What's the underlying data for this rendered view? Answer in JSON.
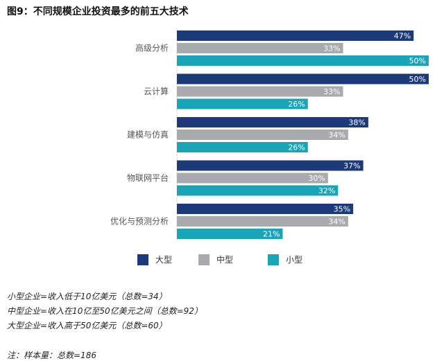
{
  "chart_data": {
    "type": "bar",
    "orientation": "horizontal",
    "title": "图9：不同规模企业投资最多的前五大技术",
    "categories": [
      "高级分析",
      "云计算",
      "建模与仿真",
      "物联网平台",
      "优化与预测分析"
    ],
    "series": [
      {
        "name": "大型",
        "color": "#1c3a7a",
        "values": [
          47,
          50,
          38,
          37,
          35
        ],
        "labels": [
          "47%",
          "50%",
          "38%",
          "37%",
          "35%"
        ]
      },
      {
        "name": "中型",
        "color": "#a8aaad",
        "values": [
          33,
          33,
          34,
          30,
          34
        ],
        "labels": [
          "33%",
          "33%",
          "34%",
          "30%",
          "34%"
        ]
      },
      {
        "name": "小型",
        "color": "#17a5b7",
        "values": [
          50,
          26,
          26,
          32,
          21
        ],
        "labels": [
          "50%",
          "26%",
          "26%",
          "32%",
          "21%"
        ]
      }
    ],
    "xlim": [
      0,
      50
    ],
    "legend": "bottom"
  },
  "notes": [
    "小型企业=收入低于10亿美元（总数=34）",
    "中型企业=收入在10亿至50亿美元之间（总数=92）",
    "大型企业=收入高于50亿美元（总数=60）"
  ],
  "footnote": "注：样本量：总数=186"
}
